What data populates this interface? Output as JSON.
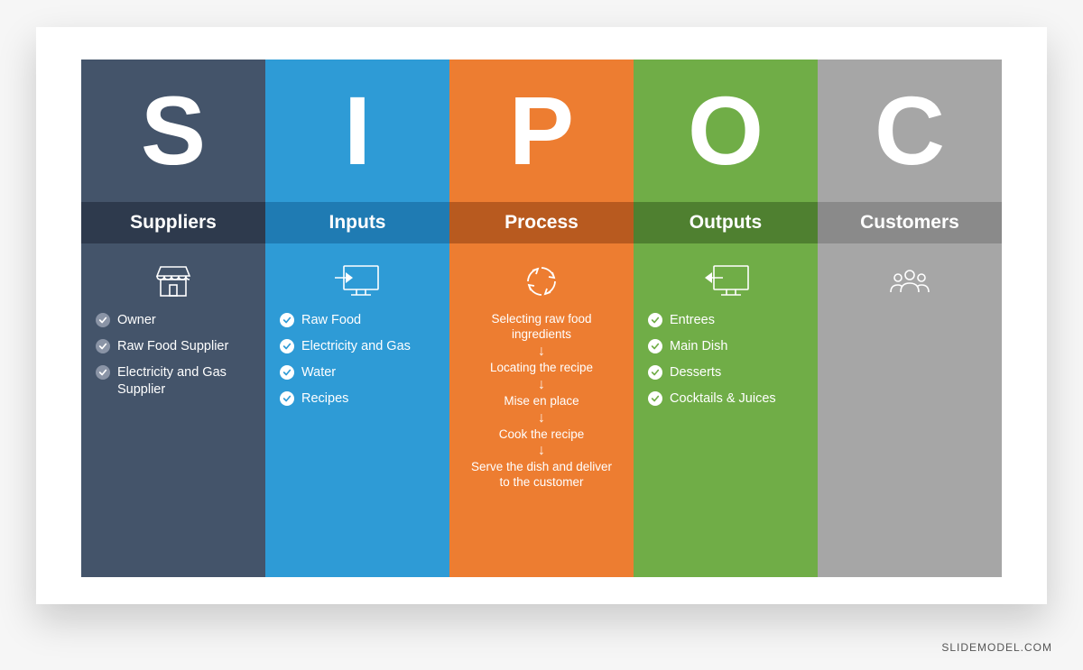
{
  "watermark": "SLIDEMODEL.COM",
  "page_bg": "#f6f6f6",
  "slide_bg": "#ffffff",
  "columns": [
    {
      "letter": "S",
      "title": "Suppliers",
      "bg": "#44546a",
      "band_bg": "#2e3a4d",
      "check_bg": "#8a94a6",
      "check_fg": "#ffffff",
      "icon": "store",
      "items": [
        "Owner",
        "Raw Food Supplier",
        "Electricity and Gas Supplier"
      ]
    },
    {
      "letter": "I",
      "title": "Inputs",
      "bg": "#2e9bd6",
      "band_bg": "#1f7bb3",
      "check_bg": "#ffffff",
      "check_fg": "#2e9bd6",
      "icon": "monitor-in",
      "items": [
        "Raw Food",
        "Electricity and Gas",
        "Water",
        "Recipes"
      ]
    },
    {
      "letter": "P",
      "title": "Process",
      "bg": "#ed7d31",
      "band_bg": "#b85a1f",
      "icon": "cycle",
      "process_steps": [
        "Selecting raw food ingredients",
        "Locating the recipe",
        "Mise en place",
        "Cook the recipe",
        "Serve the dish and deliver to the customer"
      ]
    },
    {
      "letter": "O",
      "title": "Outputs",
      "bg": "#70ad47",
      "band_bg": "#4f8030",
      "check_bg": "#ffffff",
      "check_fg": "#70ad47",
      "icon": "monitor-out",
      "items": [
        "Entrees",
        "Main Dish",
        "Desserts",
        "Cocktails & Juices"
      ]
    },
    {
      "letter": "C",
      "title": "Customers",
      "bg": "#a6a6a6",
      "band_bg": "#8a8a8a",
      "icon": "people",
      "items": []
    }
  ]
}
